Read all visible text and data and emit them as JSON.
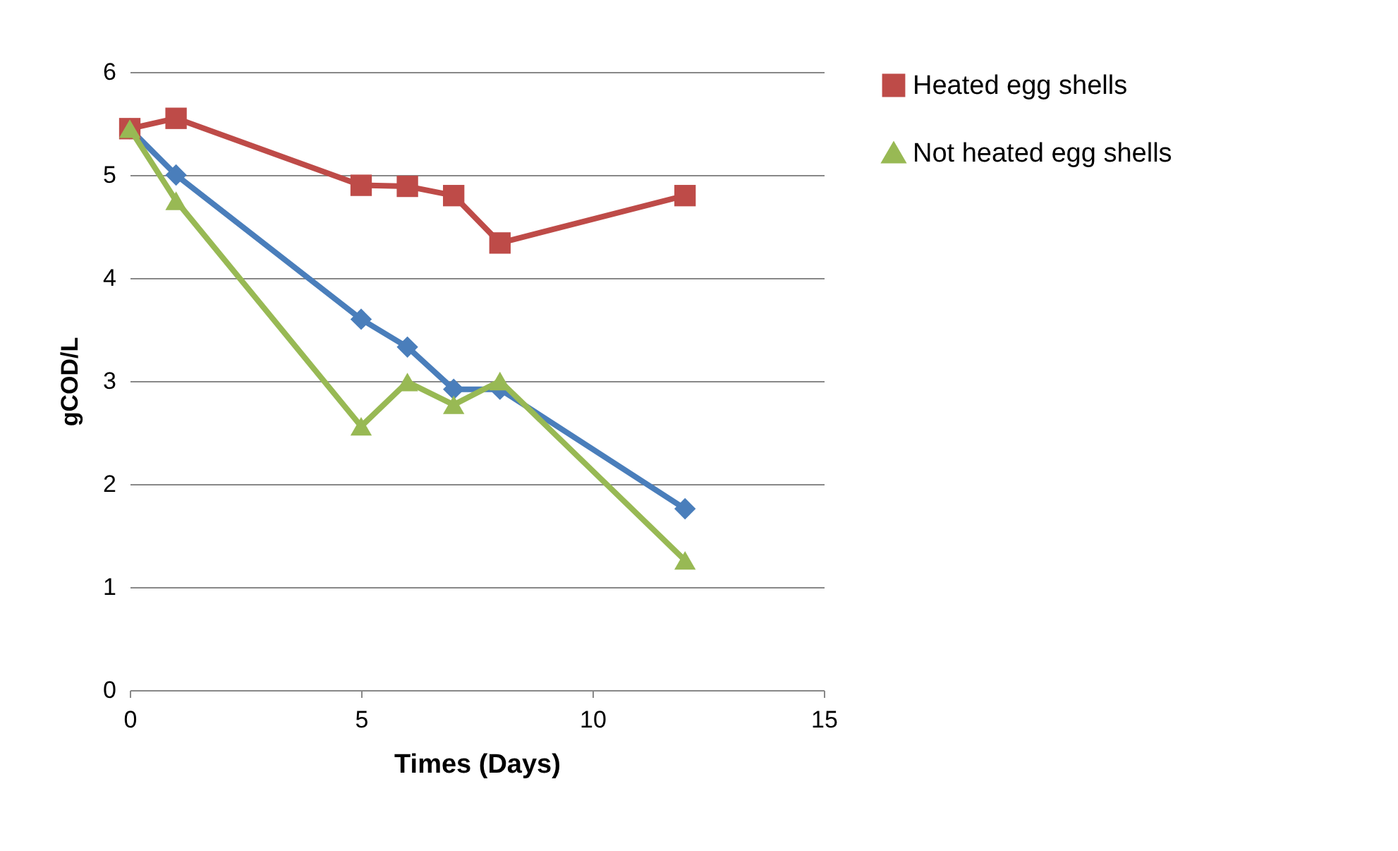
{
  "chart_data": {
    "type": "line",
    "xlabel": "Times (Days)",
    "ylabel": "gCOD/L",
    "xlim": [
      0,
      15
    ],
    "xticks": [
      0,
      5,
      10,
      15
    ],
    "ylim": [
      0,
      6
    ],
    "yticks": [
      0,
      1,
      2,
      3,
      4,
      5,
      6
    ],
    "tick_labels": "xy",
    "grid": "y",
    "legend": "right",
    "series": [
      {
        "color": "#4a7ebb",
        "marker": "diamond",
        "x": [
          0,
          1,
          5,
          6,
          7,
          8,
          12
        ],
        "values": [
          5.45,
          5.0,
          3.6,
          3.33,
          2.92,
          2.92,
          1.76
        ]
      },
      {
        "name": "Heated egg shells",
        "color": "#be4b48",
        "marker": "square",
        "x": [
          0,
          1,
          5,
          6,
          7,
          8,
          12
        ],
        "values": [
          5.45,
          5.55,
          4.9,
          4.89,
          4.8,
          4.34,
          4.8
        ]
      },
      {
        "name": "Not heated egg shells",
        "color": "#98b954",
        "marker": "triangle",
        "x": [
          0,
          1,
          5,
          6,
          7,
          8,
          12
        ],
        "values": [
          5.45,
          4.75,
          2.56,
          2.99,
          2.77,
          3.0,
          1.26
        ]
      }
    ]
  }
}
